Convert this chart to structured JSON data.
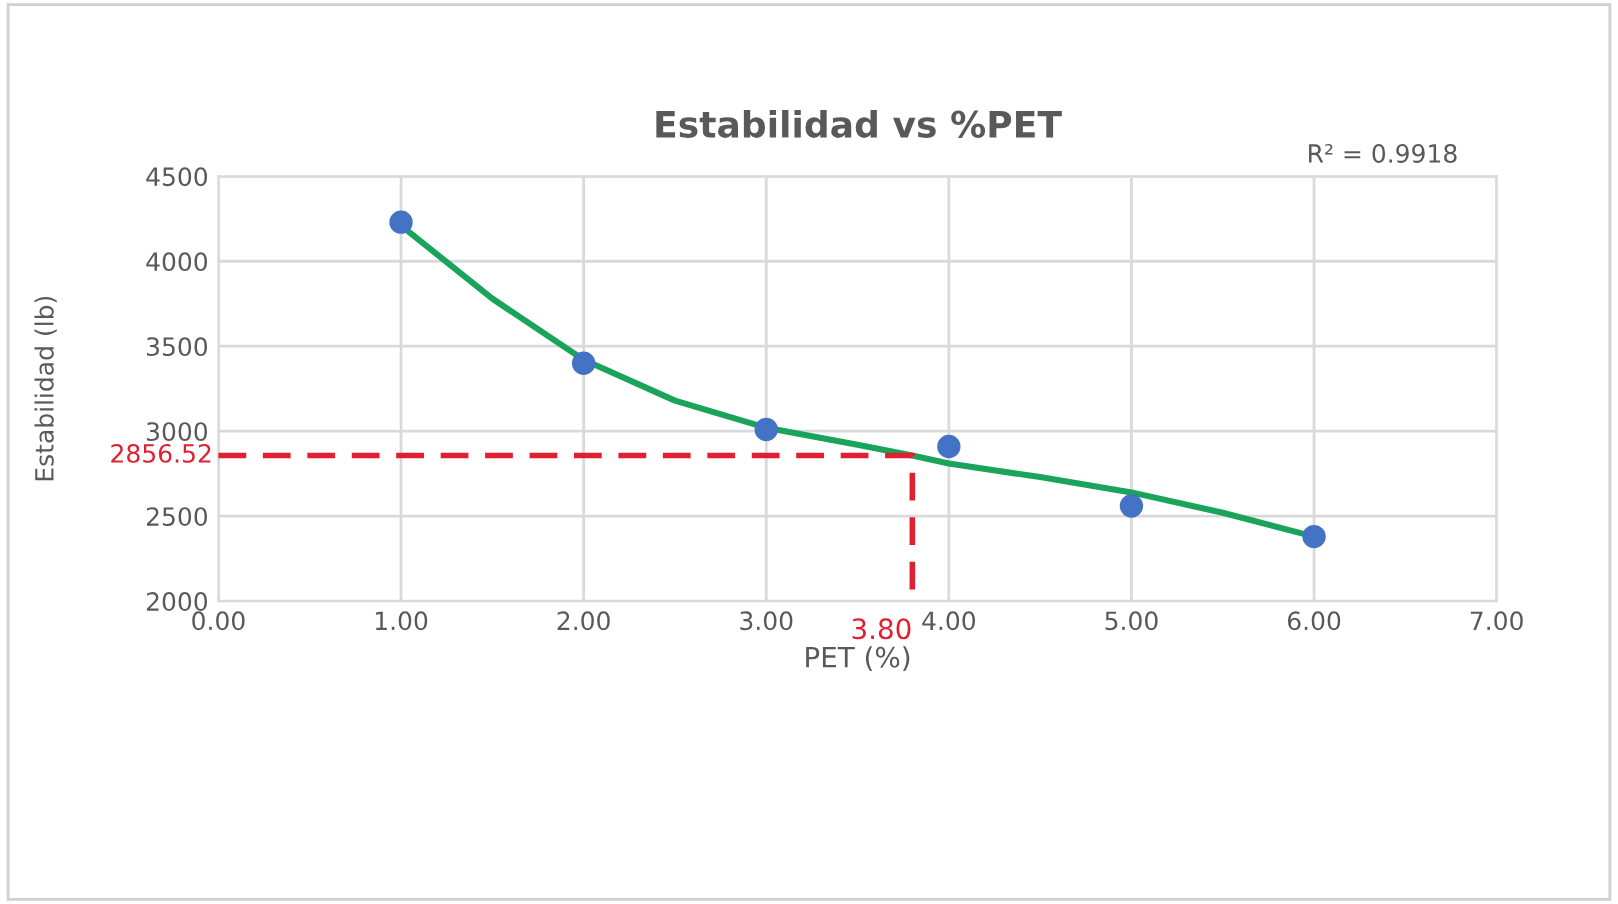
{
  "chart_data": {
    "type": "scatter",
    "title": "Estabilidad vs %PET",
    "xlabel": "PET (%)",
    "ylabel": "Estabilidad (lb)",
    "series": [
      {
        "type": "line",
        "color": "#1aa35a",
        "marker": "none",
        "line_style": "solid",
        "x": [
          1,
          1.5,
          2,
          2.5,
          3,
          3.5,
          3.8,
          4,
          4.5,
          5,
          5.5,
          6
        ],
        "values": [
          4210,
          3780,
          3420,
          3180,
          3020,
          2920,
          2856.52,
          2810,
          2730,
          2640,
          2520,
          2380
        ]
      },
      {
        "color": "#4472c4",
        "marker": "circle",
        "x": [
          1,
          2,
          3,
          4,
          5,
          6
        ],
        "values": [
          4230,
          3400,
          3010,
          2910,
          2560,
          2380
        ]
      },
      {
        "type": "line",
        "color": "#e02030",
        "marker": "none",
        "line_style": "dashed",
        "x": [
          0,
          3.8,
          3.8
        ],
        "values": [
          2856.52,
          2856.52,
          2000
        ]
      }
    ],
    "xlim": [
      0,
      7
    ],
    "xticks": [
      {
        "value": 0,
        "label": "0.00"
      },
      {
        "value": 1,
        "label": "1.00"
      },
      {
        "value": 2,
        "label": "2.00"
      },
      {
        "value": 3,
        "label": "3.00"
      },
      {
        "value": 4,
        "label": "4.00"
      },
      {
        "value": 5,
        "label": "5.00"
      },
      {
        "value": 6,
        "label": "6.00"
      },
      {
        "value": 7,
        "label": "7.00"
      }
    ],
    "ylim": [
      2000,
      4500
    ],
    "yticks": [
      2000,
      2500,
      3000,
      3500,
      4000,
      4500
    ],
    "grid": true,
    "annotations": [
      "R² = 0.9918",
      {
        "text": "2856.52",
        "x": 0,
        "y": 2856.52
      },
      {
        "text": "3.80",
        "x": 3.8,
        "y": 2000
      }
    ]
  }
}
